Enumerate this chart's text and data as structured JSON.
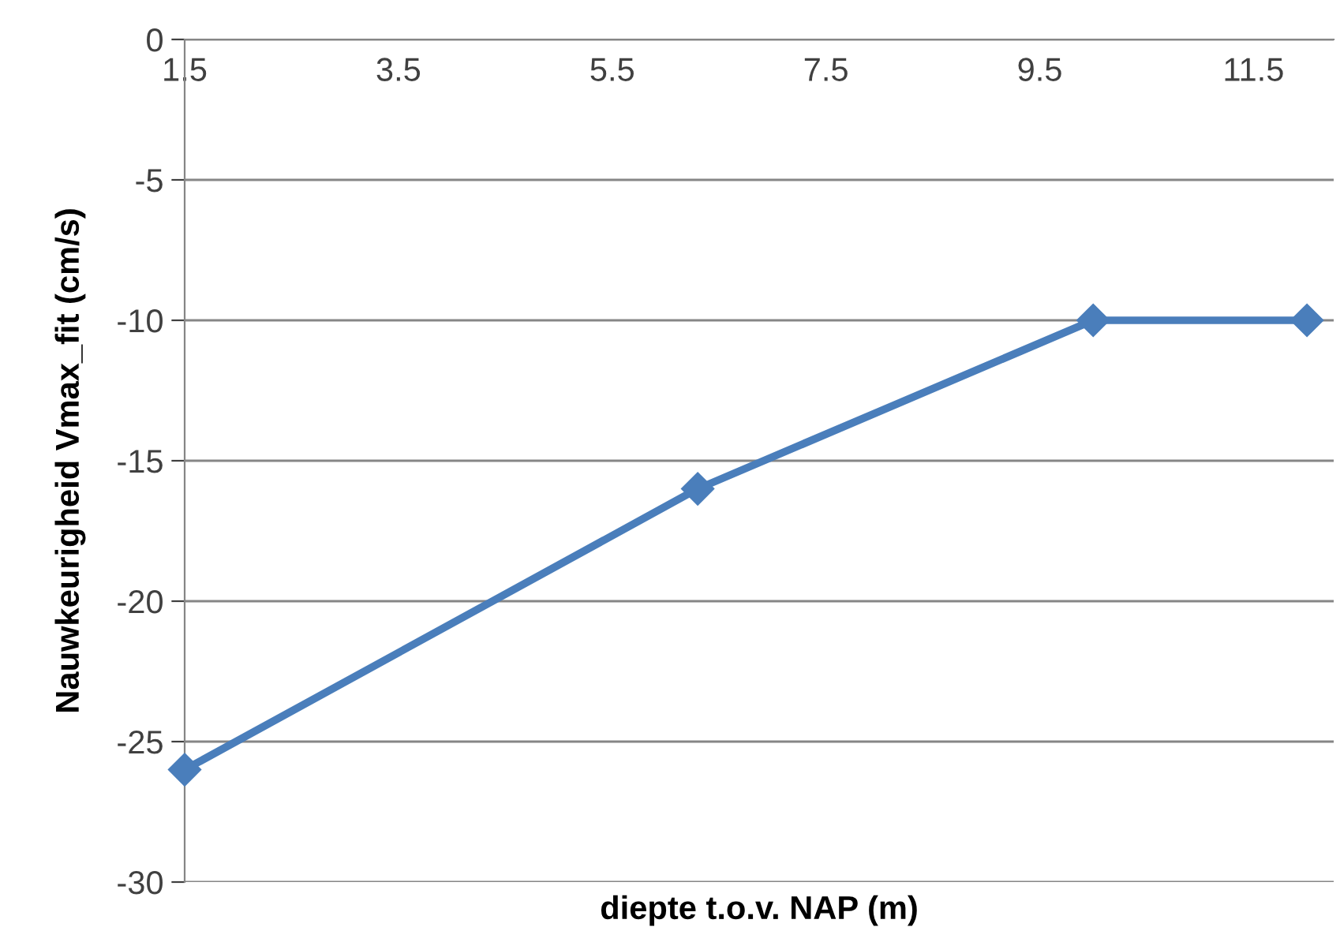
{
  "chart_data": {
    "type": "line",
    "xlabel": "diepte t.o.v. NAP (m)",
    "ylabel": "Nauwkeurigheid Vmax_fit (cm/s)",
    "x": [
      1.5,
      6.3,
      10,
      12
    ],
    "series": [
      {
        "color": "#4a7ebb",
        "values": [
          -26,
          -16,
          -10,
          -10
        ]
      }
    ],
    "xlim": [
      1.5,
      12.25
    ],
    "xticks": [
      1.5,
      3.5,
      5.5,
      7.5,
      9.5,
      11.5
    ],
    "ylim": [
      -30,
      0
    ],
    "yticks": [
      -30,
      -25,
      -20,
      -15,
      -10,
      -5,
      0
    ],
    "grid": "y",
    "marker": "diamond",
    "line_style": "solid"
  }
}
